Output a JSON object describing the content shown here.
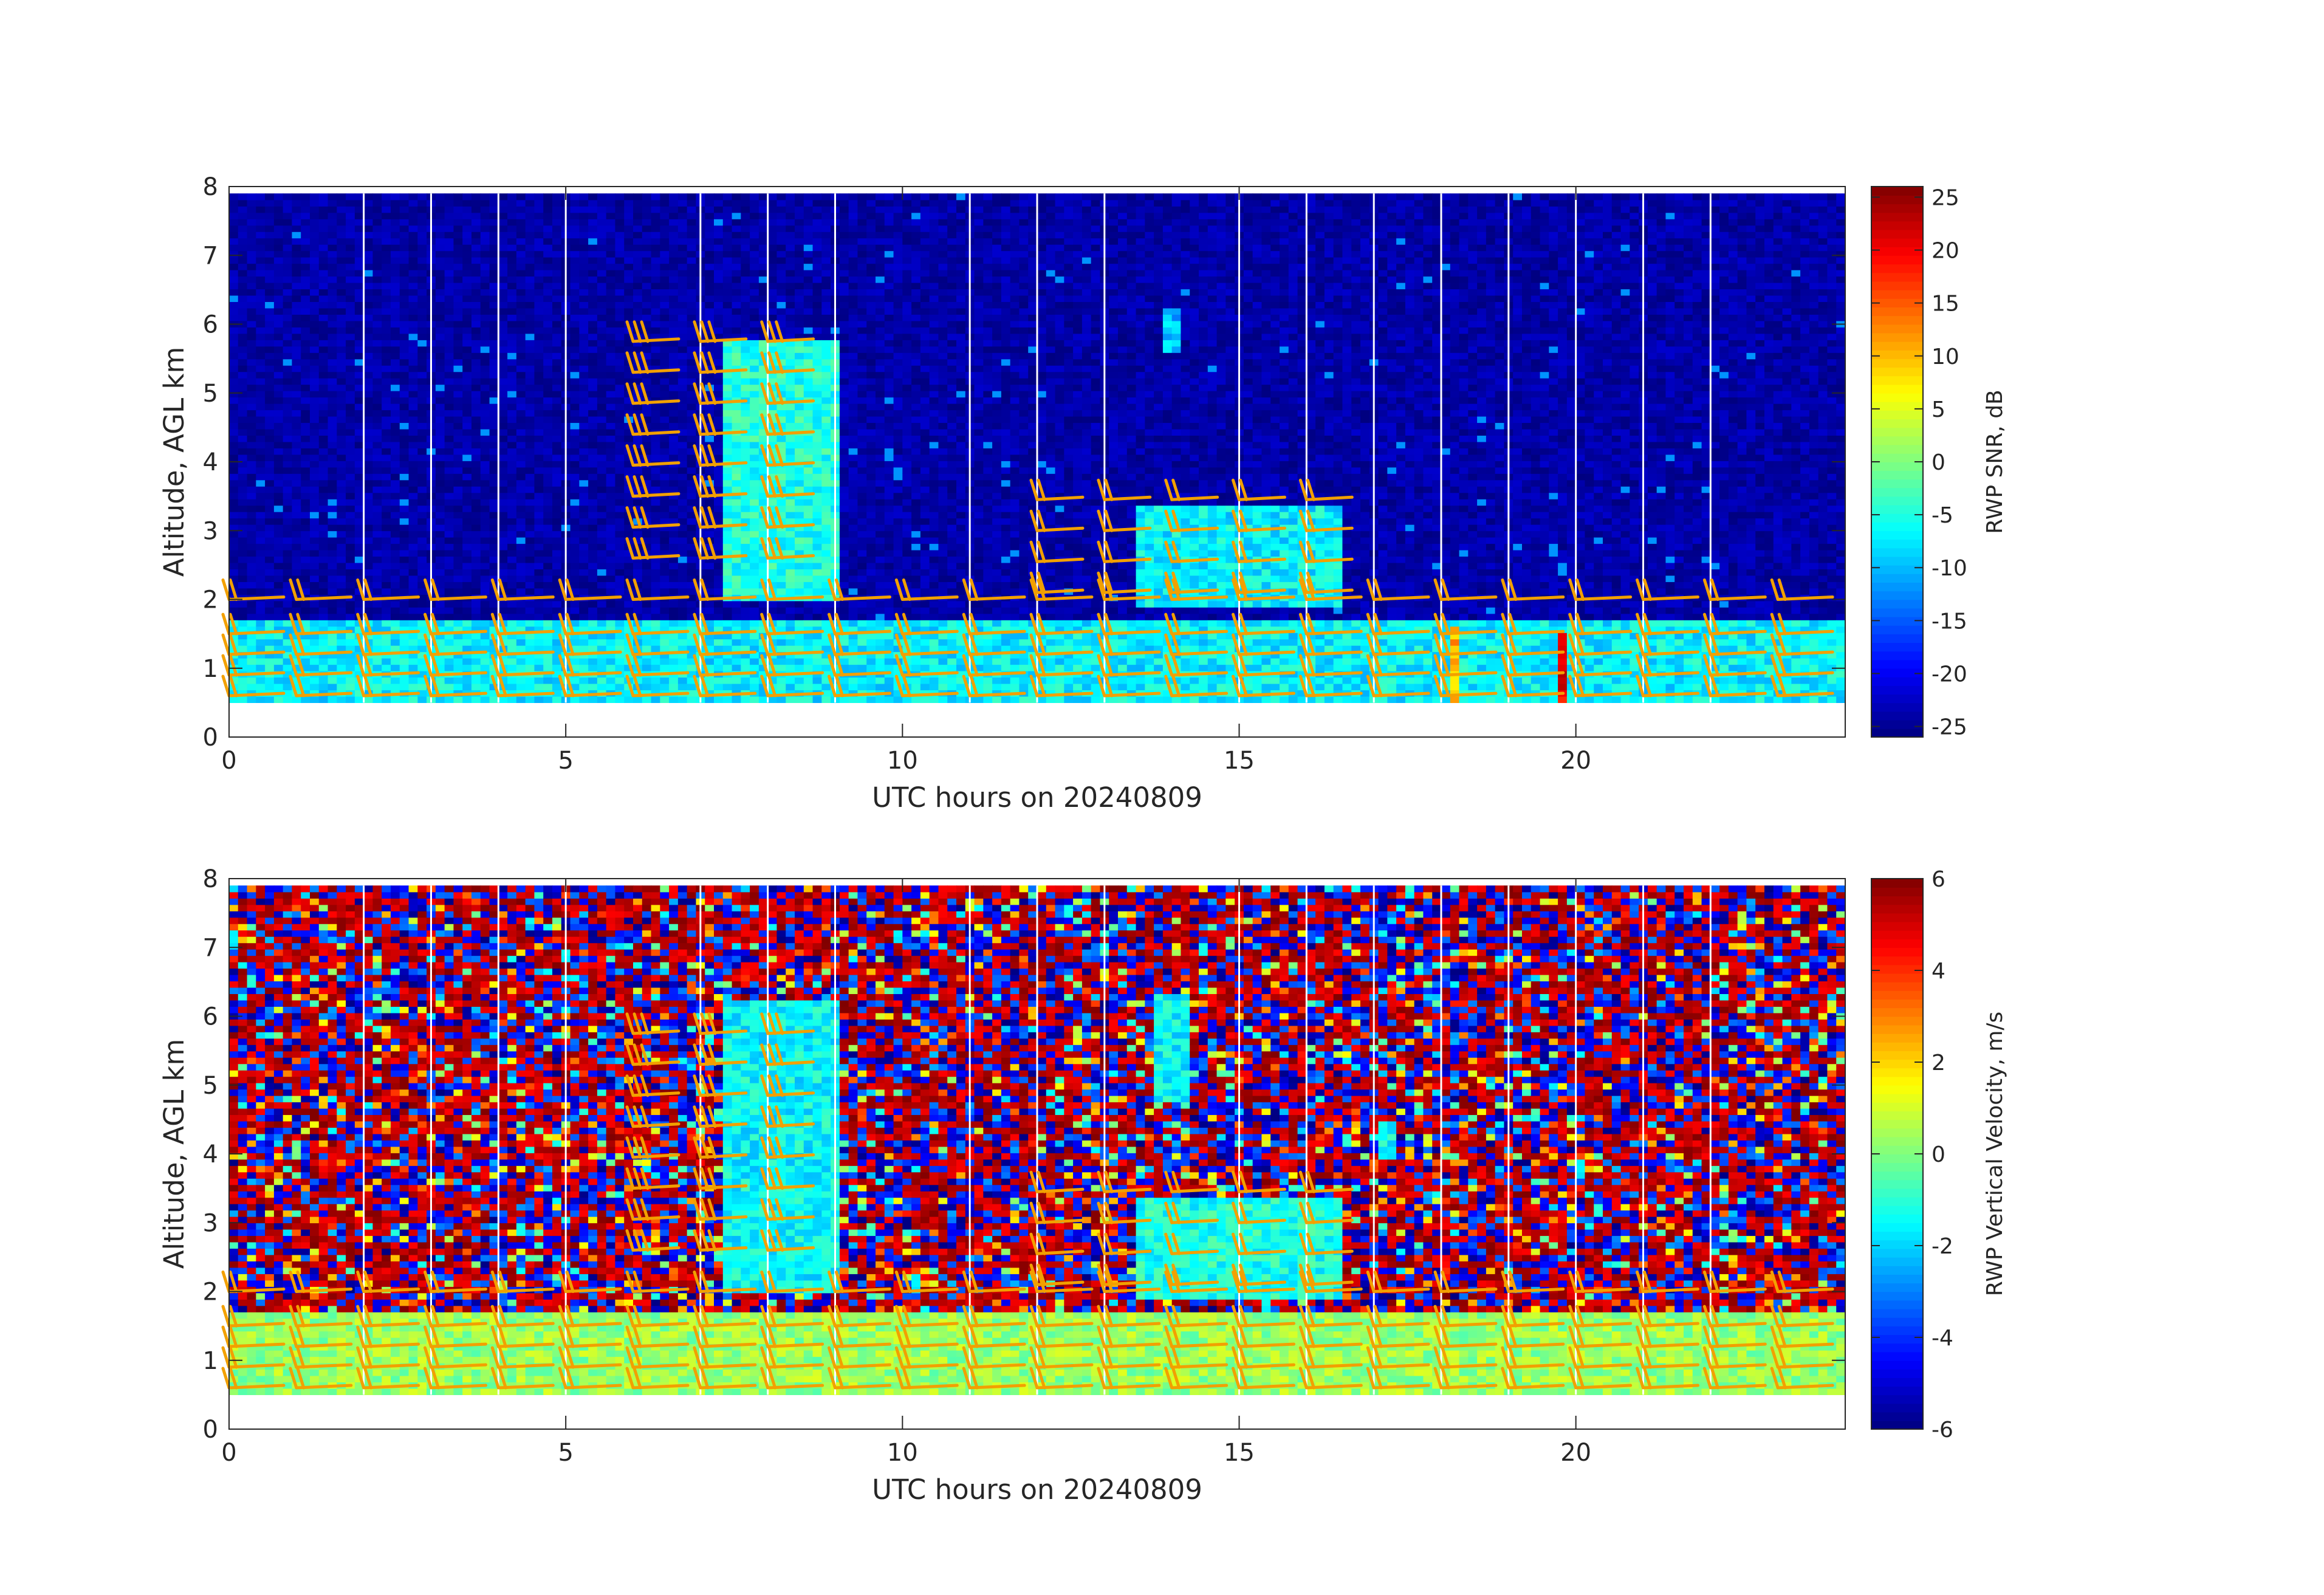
{
  "chart_data": [
    {
      "type": "heatmap",
      "title": "",
      "xlabel": "UTC hours on 20240809",
      "ylabel": "Altitude, AGL km",
      "xlim": [
        0,
        24
      ],
      "ylim": [
        0,
        8
      ],
      "xticks": [
        0,
        5,
        10,
        15,
        20
      ],
      "yticks": [
        0,
        1,
        2,
        3,
        4,
        5,
        6,
        7,
        8
      ],
      "data_altitude_range_km": [
        0.5,
        7.9
      ],
      "colorbar": {
        "label": "RWP SNR, dB",
        "colormap": "jet",
        "range": [
          -26,
          26
        ],
        "ticks": [
          -25,
          -20,
          -15,
          -10,
          -5,
          0,
          5,
          10,
          15,
          20,
          25
        ]
      },
      "background_level_dB": -24,
      "features": [
        {
          "name": "boundary layer echoes",
          "x_range": [
            0,
            24
          ],
          "altitude_km": [
            0.5,
            1.7
          ],
          "value_dB": -7
        },
        {
          "name": "elevated plume",
          "x_range": [
            7.3,
            9.0
          ],
          "altitude_km": [
            2.0,
            5.8
          ],
          "value_dB": -5
        },
        {
          "name": "sloping layer",
          "x_range": [
            13.5,
            16.5
          ],
          "altitude_km": [
            1.9,
            3.4
          ],
          "value_dB": -7
        },
        {
          "name": "isolated echo",
          "x_range": [
            13.9,
            14.1
          ],
          "altitude_km": [
            5.6,
            6.2
          ],
          "value_dB": -10
        },
        {
          "name": "strong echo",
          "x_range": [
            19.7,
            19.9
          ],
          "altitude_km": [
            0.5,
            1.5
          ],
          "value_dB": 20
        },
        {
          "name": "strong echo",
          "x_range": [
            18.2,
            18.3
          ],
          "altitude_km": [
            0.5,
            1.6
          ],
          "value_dB": 10
        }
      ],
      "time_marker_lines_hours": [
        2,
        3,
        4,
        5,
        7,
        8,
        9,
        11,
        12,
        13,
        15,
        16,
        17,
        18,
        19,
        20,
        21,
        22
      ],
      "wind_barb_color": "#f2a000"
    },
    {
      "type": "heatmap",
      "title": "",
      "xlabel": "UTC hours on 20240809",
      "ylabel": "Altitude, AGL km",
      "xlim": [
        0,
        24
      ],
      "ylim": [
        0,
        8
      ],
      "xticks": [
        0,
        5,
        10,
        15,
        20
      ],
      "yticks": [
        0,
        1,
        2,
        3,
        4,
        5,
        6,
        7,
        8
      ],
      "data_altitude_range_km": [
        0.5,
        7.9
      ],
      "colorbar": {
        "label": "RWP Vertical Velocity, m/s",
        "colormap": "jet",
        "range": [
          -6,
          6
        ],
        "ticks": [
          -6,
          -4,
          -2,
          0,
          2,
          4,
          6
        ]
      },
      "background": "noise (random values across full range)",
      "features": [
        {
          "name": "boundary layer",
          "x_range": [
            0,
            24
          ],
          "altitude_km": [
            0.5,
            1.7
          ],
          "value_ms": 0.3
        },
        {
          "name": "elevated plume",
          "x_range": [
            7.3,
            9.0
          ],
          "altitude_km": [
            2.0,
            6.2
          ],
          "value_ms": -1.5
        },
        {
          "name": "sloping layer",
          "x_range": [
            13.5,
            16.5
          ],
          "altitude_km": [
            1.9,
            3.4
          ],
          "value_ms": -1.2
        },
        {
          "name": "isolated feature",
          "x_range": [
            13.7,
            14.2
          ],
          "altitude_km": [
            4.8,
            6.3
          ],
          "value_ms": -1.5
        },
        {
          "name": "isolated feature",
          "x_range": [
            17.1,
            17.3
          ],
          "altitude_km": [
            3.9,
            4.5
          ],
          "value_ms": -1.5
        }
      ],
      "time_marker_lines_hours": [
        2,
        3,
        4,
        5,
        7,
        8,
        9,
        11,
        12,
        13,
        15,
        16,
        17,
        18,
        19,
        20,
        21,
        22
      ],
      "wind_barb_color": "#f2a000"
    }
  ]
}
